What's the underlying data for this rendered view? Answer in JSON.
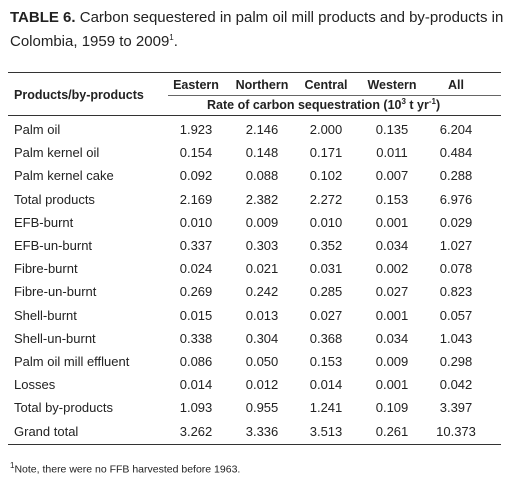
{
  "caption": {
    "label": "TABLE 6.",
    "text": "Carbon sequestered in palm oil mill products and by-products in Colombia, 1959 to 2009",
    "note_mark": "1",
    "end": "."
  },
  "table": {
    "row_header": "Products/by-products",
    "columns": [
      "Eastern",
      "Northern",
      "Central",
      "Western",
      "All"
    ],
    "unit": {
      "text": "Rate of carbon sequestration (10",
      "exp1": "3",
      "mid": " t yr",
      "exp2": "-1",
      "end": ")"
    },
    "rows": [
      [
        "Palm oil",
        "1.923",
        "2.146",
        "2.000",
        "0.135",
        "6.204"
      ],
      [
        "Palm kernel oil",
        "0.154",
        "0.148",
        "0.171",
        "0.011",
        "0.484"
      ],
      [
        "Palm kernel cake",
        "0.092",
        "0.088",
        "0.102",
        "0.007",
        "0.288"
      ],
      [
        "Total products",
        "2.169",
        "2.382",
        "2.272",
        "0.153",
        "6.976"
      ],
      [
        "EFB-burnt",
        "0.010",
        "0.009",
        "0.010",
        "0.001",
        "0.029"
      ],
      [
        "EFB-un-burnt",
        "0.337",
        "0.303",
        "0.352",
        "0.034",
        "1.027"
      ],
      [
        "Fibre-burnt",
        "0.024",
        "0.021",
        "0.031",
        "0.002",
        "0.078"
      ],
      [
        "Fibre-un-burnt",
        "0.269",
        "0.242",
        "0.285",
        "0.027",
        "0.823"
      ],
      [
        "Shell-burnt",
        "0.015",
        "0.013",
        "0.027",
        "0.001",
        "0.057"
      ],
      [
        "Shell-un-burnt",
        "0.338",
        "0.304",
        "0.368",
        "0.034",
        "1.043"
      ],
      [
        "Palm oil mill effluent",
        "0.086",
        "0.050",
        "0.153",
        "0.009",
        "0.298"
      ],
      [
        "Losses",
        "0.014",
        "0.012",
        "0.014",
        "0.001",
        "0.042"
      ],
      [
        "Total by-products",
        "1.093",
        "0.955",
        "1.241",
        "0.109",
        "3.397"
      ],
      [
        "Grand total",
        "3.262",
        "3.336",
        "3.513",
        "0.261",
        "10.373"
      ]
    ]
  },
  "footnote": {
    "mark": "1",
    "text": "Note, there were no FFB harvested before 1963."
  }
}
